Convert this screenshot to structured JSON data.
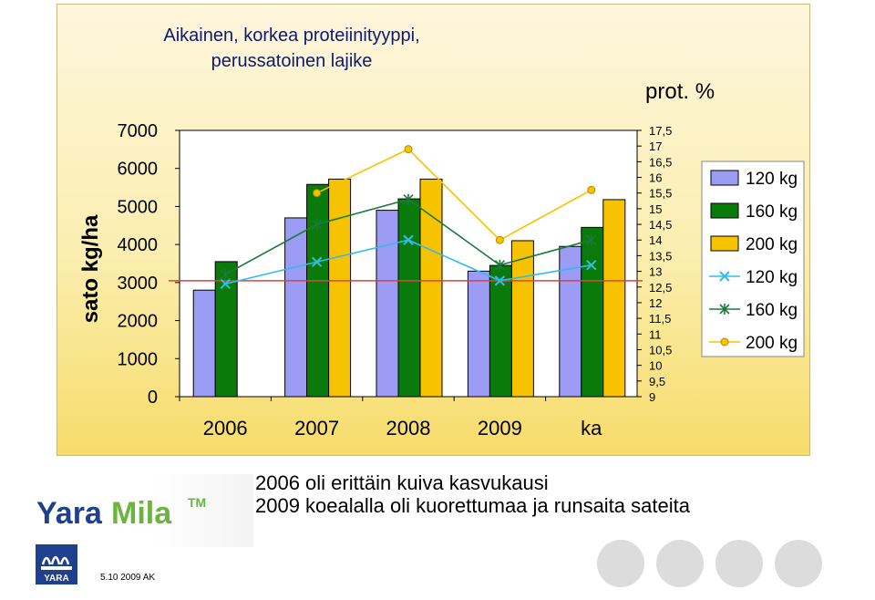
{
  "chart_data": {
    "type": "bar+line",
    "title": "Aikainen, korkea proteiinityyppi,\nperussatoinen lajike",
    "title_lines": [
      "Aikainen, korkea proteiinityyppi,",
      "perussatoinen lajike"
    ],
    "ylabel": "sato kg/ha",
    "y2label": "prot. %",
    "categories": [
      "2006",
      "2007",
      "2008",
      "2009",
      "ka"
    ],
    "ylim": [
      0,
      7000
    ],
    "y_ticks": [
      "7000",
      "6000",
      "5000",
      "4000",
      "3000",
      "2000",
      "1000",
      "0"
    ],
    "y2lim": [
      9,
      17.5
    ],
    "y2_ticks": [
      "17,5",
      "17",
      "16,5",
      "16",
      "15,5",
      "15",
      "14,5",
      "14",
      "13,5",
      "13",
      "12,5",
      "12",
      "11,5",
      "11",
      "10,5",
      "10",
      "9,5",
      "9"
    ],
    "reference_line_y2": 12.7,
    "bar_series": [
      {
        "name": "120 kg",
        "color": "#9c9cf4",
        "values": [
          2800,
          4700,
          4900,
          3300,
          3950
        ]
      },
      {
        "name": "160 kg",
        "color": "#0a7a0a",
        "values": [
          3550,
          5580,
          5200,
          3450,
          4450
        ]
      },
      {
        "name": "200 kg",
        "color": "#f7c300",
        "values": [
          null,
          5720,
          5720,
          4100,
          5180
        ]
      }
    ],
    "line_series": [
      {
        "name": "120 kg",
        "color": "#33bbee",
        "marker": "x",
        "values": [
          12.6,
          13.3,
          14.0,
          12.7,
          13.2
        ]
      },
      {
        "name": "160 kg",
        "color": "#1a7a3a",
        "marker": "star",
        "values": [
          12.9,
          14.5,
          15.3,
          13.2,
          14.0
        ]
      },
      {
        "name": "200 kg",
        "color": "#f7c300",
        "marker": "circle",
        "values": [
          null,
          15.5,
          16.9,
          14.0,
          15.6
        ]
      }
    ],
    "legend_entries": [
      "120 kg",
      "160 kg",
      "200 kg",
      "120 kg",
      "160 kg",
      "200 kg"
    ],
    "legend_position": "right"
  },
  "notes": [
    "2006 oli erittäin kuiva kasvukausi",
    "2009 koealalla oli kuorettumaa ja runsaita sateita"
  ],
  "brand": {
    "name": "YaraMila",
    "tm": "TM",
    "emblem_text": "YARA"
  },
  "footer": {
    "date": "5.10 2009 AK"
  },
  "colors": {
    "bar120": "#9c9cf4",
    "bar160": "#0a7a0a",
    "bar200": "#f7c300",
    "ref_line": "#e04040",
    "brand_blue": "#1f3f8f",
    "brand_green": "#6cb33f"
  }
}
